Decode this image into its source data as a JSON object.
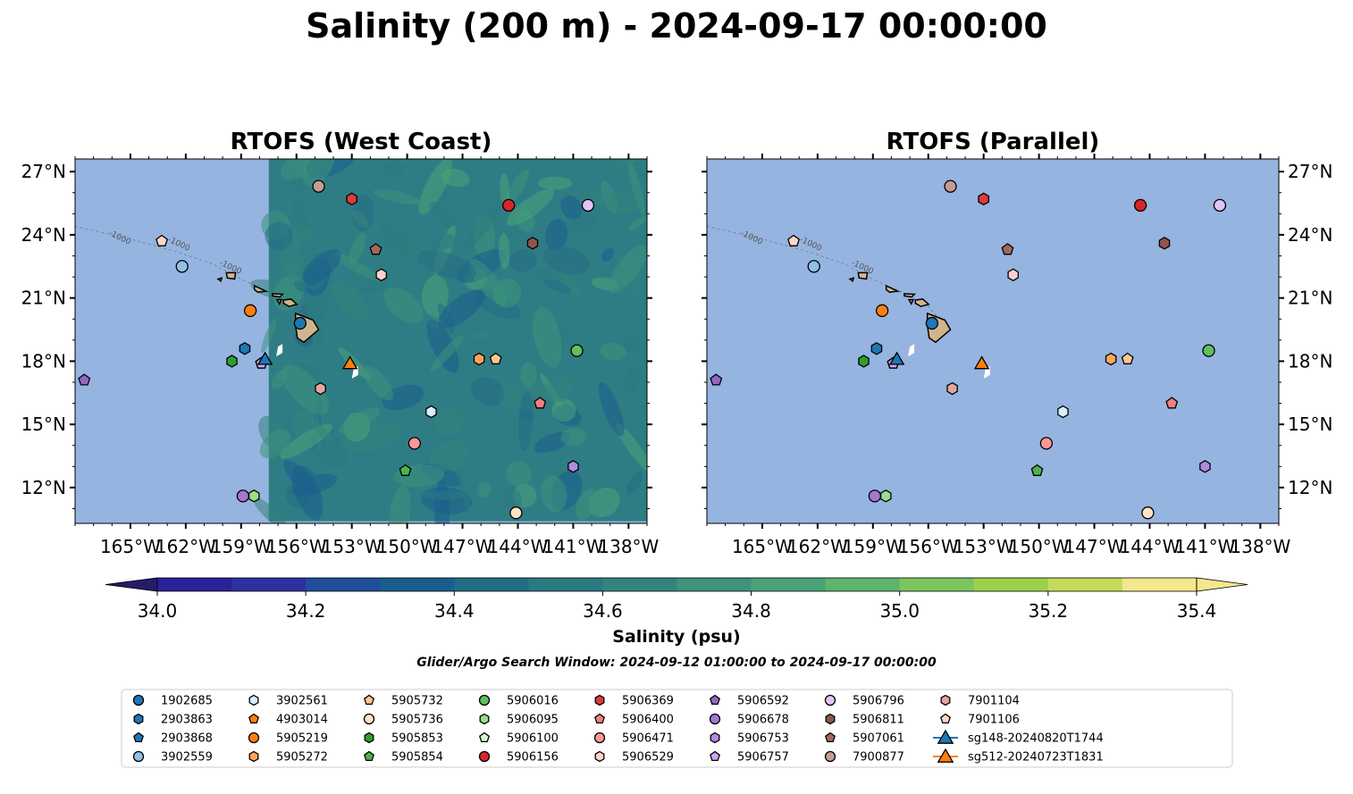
{
  "title": "Salinity (200 m) - 2024-09-17 00:00:00",
  "panels": [
    {
      "title": "RTOFS (West Coast)",
      "data_lon_min": -157.5
    },
    {
      "title": "RTOFS (Parallel)"
    }
  ],
  "map": {
    "lon_range": [
      -168,
      -137
    ],
    "lat_range": [
      10.3,
      27.6
    ],
    "lon_ticks": [
      -165,
      -162,
      -159,
      -156,
      -153,
      -150,
      -147,
      -144,
      -141,
      -138
    ],
    "lon_tick_labels": [
      "165°W",
      "162°W",
      "159°W",
      "156°W",
      "153°W",
      "150°W",
      "147°W",
      "144°W",
      "141°W",
      "138°W"
    ],
    "lat_ticks": [
      12,
      15,
      18,
      21,
      24,
      27
    ],
    "lat_tick_labels": [
      "12°N",
      "15°N",
      "18°N",
      "21°N",
      "24°N",
      "27°N"
    ],
    "contour_labels": [
      "-1000"
    ],
    "ocean_color": "#96b4e0",
    "land_color": "#d2b48c"
  },
  "colorbar": {
    "label": "Salinity (psu)",
    "min": 33.9,
    "max": 35.5,
    "levels": [
      34.0,
      34.1,
      34.2,
      34.3,
      34.4,
      34.5,
      34.6,
      34.7,
      34.8,
      34.9,
      35.0,
      35.1,
      35.2,
      35.3,
      35.4
    ],
    "colors": [
      "#261b69",
      "#2a2299",
      "#2d31a0",
      "#204e9a",
      "#1a5e8e",
      "#226d86",
      "#2a7a82",
      "#33847e",
      "#3d937c",
      "#4aa379",
      "#5fb36d",
      "#7ac55e",
      "#9dd04b",
      "#c6da5a",
      "#f3e88d"
    ],
    "tick_values": [
      34.0,
      34.2,
      34.4,
      34.6,
      34.8,
      35.0,
      35.2,
      35.4
    ],
    "tick_labels": [
      "34.0",
      "34.2",
      "34.4",
      "34.6",
      "34.8",
      "35.0",
      "35.2",
      "35.4"
    ]
  },
  "search_window": "Glider/Argo Search Window: 2024-09-12 01:00:00 to 2024-09-17 00:00:00",
  "platforms": [
    {
      "id": "1902685",
      "marker": "circle",
      "color": "#1f77b4",
      "lon": -155.8,
      "lat": 19.8
    },
    {
      "id": "2903863",
      "marker": "hexagon",
      "color": "#1f77b4",
      "lon": -158.8,
      "lat": 18.6
    },
    {
      "id": "2903868",
      "marker": "pentagon",
      "color": "#1f77b4",
      "lon": -157.9,
      "lat": 17.9
    },
    {
      "id": "3902559",
      "marker": "circle",
      "color": "#8fc1e6",
      "lon": -162.2,
      "lat": 22.5
    },
    {
      "id": "3902561",
      "marker": "hexagon",
      "color": "#d8eefa",
      "lon": -148.7,
      "lat": 15.6
    },
    {
      "id": "4903014",
      "marker": "pentagon",
      "color": "#ff7f0e",
      "lon": -157.9,
      "lat": 17.9
    },
    {
      "id": "5905219",
      "marker": "circle",
      "color": "#ff7f0e",
      "lon": -158.5,
      "lat": 20.4
    },
    {
      "id": "5905272",
      "marker": "hexagon",
      "color": "#ffa55c",
      "lon": -146.1,
      "lat": 18.1
    },
    {
      "id": "5905732",
      "marker": "pentagon",
      "color": "#ffc891",
      "lon": -145.2,
      "lat": 18.1
    },
    {
      "id": "5905736",
      "marker": "circle",
      "color": "#ffe3c4",
      "lon": -144.1,
      "lat": 10.8
    },
    {
      "id": "5905853",
      "marker": "hexagon",
      "color": "#2ca02c",
      "lon": -159.5,
      "lat": 18.0
    },
    {
      "id": "5905854",
      "marker": "pentagon",
      "color": "#4cb34c",
      "lon": -150.1,
      "lat": 12.8
    },
    {
      "id": "5906016",
      "marker": "circle",
      "color": "#5fc05f",
      "lon": -140.8,
      "lat": 18.5
    },
    {
      "id": "5906095",
      "marker": "hexagon",
      "color": "#98df8a",
      "lon": -158.3,
      "lat": 11.6
    },
    {
      "id": "5906100",
      "marker": "pentagon",
      "color": "#d5f5cf",
      "lon": -157.9,
      "lat": 17.9
    },
    {
      "id": "5906156",
      "marker": "circle",
      "color": "#d62728",
      "lon": -144.5,
      "lat": 25.4
    },
    {
      "id": "5906369",
      "marker": "hexagon",
      "color": "#e03a3a",
      "lon": -153.0,
      "lat": 25.7
    },
    {
      "id": "5906400",
      "marker": "pentagon",
      "color": "#f08080",
      "lon": -142.8,
      "lat": 16.0
    },
    {
      "id": "5906471",
      "marker": "circle",
      "color": "#ff9896",
      "lon": -149.6,
      "lat": 14.1
    },
    {
      "id": "5906529",
      "marker": "hexagon",
      "color": "#ffd0ce",
      "lon": -151.4,
      "lat": 22.1
    },
    {
      "id": "5906592",
      "marker": "pentagon",
      "color": "#9467bd",
      "lon": -167.5,
      "lat": 17.1
    },
    {
      "id": "5906678",
      "marker": "circle",
      "color": "#a278d0",
      "lon": -158.9,
      "lat": 11.6
    },
    {
      "id": "5906753",
      "marker": "hexagon",
      "color": "#b08be0",
      "lon": -141.0,
      "lat": 13.0
    },
    {
      "id": "5906757",
      "marker": "pentagon",
      "color": "#cba6ef",
      "lon": -157.9,
      "lat": 17.9
    },
    {
      "id": "5906796",
      "marker": "circle",
      "color": "#e2c4f5",
      "lon": -140.2,
      "lat": 25.4
    },
    {
      "id": "5906811",
      "marker": "hexagon",
      "color": "#8c564b",
      "lon": -143.2,
      "lat": 23.6
    },
    {
      "id": "5907061",
      "marker": "pentagon",
      "color": "#a0695c",
      "lon": -151.7,
      "lat": 23.3
    },
    {
      "id": "7900877",
      "marker": "circle",
      "color": "#c49c94",
      "lon": -154.8,
      "lat": 26.3
    },
    {
      "id": "7901104",
      "marker": "hexagon",
      "color": "#e0a89c",
      "lon": -154.7,
      "lat": 16.7
    },
    {
      "id": "7901106",
      "marker": "pentagon",
      "color": "#ffd6c9",
      "lon": -163.3,
      "lat": 23.7
    },
    {
      "id": "sg148-20240820T1744",
      "marker": "triangle",
      "color": "#1f77b4",
      "line": true,
      "lon": -157.7,
      "lat": 18.1
    },
    {
      "id": "sg512-20240723T1831",
      "marker": "triangle",
      "color": "#ff7f0e",
      "line": true,
      "lon": -153.1,
      "lat": 17.9
    }
  ]
}
